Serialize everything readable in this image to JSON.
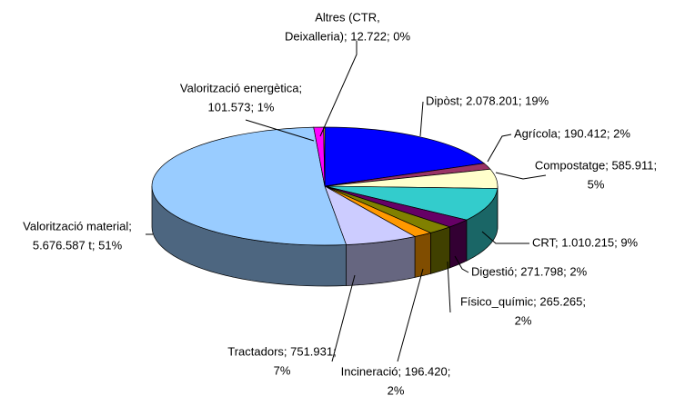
{
  "chart_data": {
    "type": "pie3d",
    "categories": [
      "Dipòst",
      "Agrícola",
      "Compostatge",
      "CRT",
      "Digestió",
      "Físico_químic",
      "Incineració",
      "Tractadors",
      "Valorització material",
      "Valorització energètica",
      "Altres (CTR, Deixalleria)"
    ],
    "values": [
      2078201,
      190412,
      585911,
      1010215,
      271798,
      265265,
      196420,
      751931,
      5676587,
      101573,
      12722
    ],
    "colors": [
      "#0000ff",
      "#993366",
      "#ffffcc",
      "#33cccc",
      "#660066",
      "#808000",
      "#ff9900",
      "#ccccff",
      "#99ccff",
      "#ff00ff",
      "#ffff00"
    ],
    "value_labels": [
      [
        "Dipòst; 2.078.201; 19%"
      ],
      [
        "Agrícola; 190.412; 2%"
      ],
      [
        "Compostatge; 585.911;",
        "5%"
      ],
      [
        "CRT; 1.010.215; 9%"
      ],
      [
        "Digestió; 271.798; 2%"
      ],
      [
        "Físico_químic; 265.265;",
        "2%"
      ],
      [
        "Incineració; 196.420;",
        "2%"
      ],
      [
        "Tractadors; 751.931;",
        "7%"
      ],
      [
        "Valorització material;",
        "5.676.587 t; 51%"
      ],
      [
        "Valorització energètica;",
        "101.573; 1%"
      ],
      [
        "Altres (CTR,",
        "Deixalleria); 12.722; 0%"
      ]
    ]
  }
}
